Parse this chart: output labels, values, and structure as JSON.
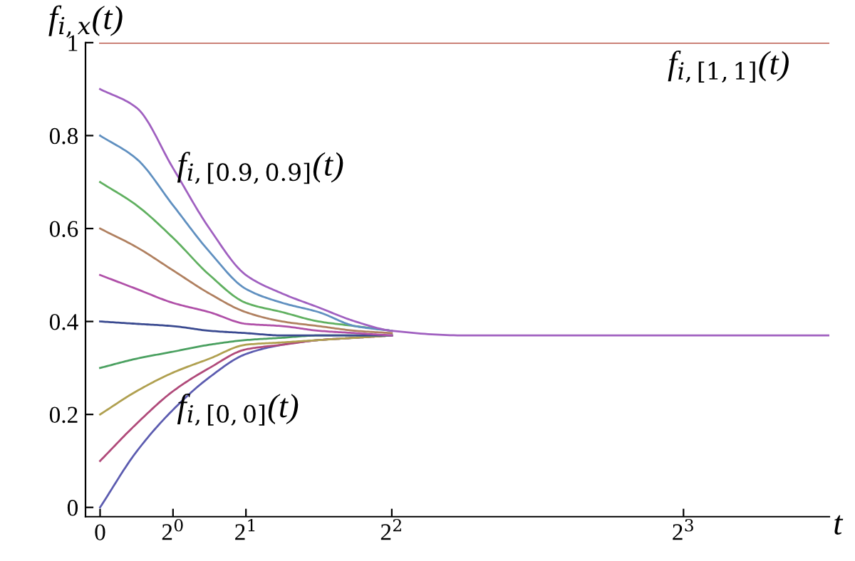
{
  "chart_data": {
    "type": "line",
    "xlabel": "t",
    "ylabel": "f$_{i,x}$(t)",
    "x": [
      0,
      0.5,
      1,
      1.5,
      2,
      2.5,
      3,
      3.5,
      4,
      5,
      6,
      8,
      10
    ],
    "series": [
      {
        "name": "f$_{i,[0,0]}$(t)",
        "color": "#5c5cb0",
        "values": [
          0,
          0.12,
          0.21,
          0.28,
          0.33,
          0.35,
          0.36,
          0.365,
          0.37,
          null,
          null,
          null,
          null
        ]
      },
      {
        "color": "#b04a7a",
        "values": [
          0.1,
          0.18,
          0.25,
          0.3,
          0.34,
          0.35,
          0.36,
          0.365,
          0.37,
          null,
          null,
          null,
          null
        ]
      },
      {
        "color": "#b0a050",
        "values": [
          0.2,
          0.25,
          0.29,
          0.32,
          0.35,
          0.355,
          0.36,
          0.365,
          0.37,
          null,
          null,
          null,
          null
        ]
      },
      {
        "color": "#4aa060",
        "values": [
          0.3,
          0.32,
          0.335,
          0.35,
          0.36,
          0.365,
          0.37,
          0.37,
          0.37,
          null,
          null,
          null,
          null
        ]
      },
      {
        "color": "#3a4a90",
        "values": [
          0.4,
          0.395,
          0.39,
          0.38,
          0.375,
          0.37,
          0.37,
          0.37,
          0.37,
          null,
          null,
          null,
          null
        ]
      },
      {
        "color": "#b050a8",
        "values": [
          0.5,
          0.47,
          0.44,
          0.42,
          0.395,
          0.39,
          0.38,
          0.375,
          0.37,
          null,
          null,
          null,
          null
        ]
      },
      {
        "color": "#b08060",
        "values": [
          0.6,
          0.56,
          0.51,
          0.46,
          0.42,
          0.4,
          0.39,
          0.38,
          0.375,
          null,
          null,
          null,
          null
        ]
      },
      {
        "color": "#60b060",
        "values": [
          0.7,
          0.65,
          0.58,
          0.5,
          0.44,
          0.42,
          0.4,
          0.39,
          0.38,
          null,
          null,
          null,
          null
        ]
      },
      {
        "color": "#6090c0",
        "values": [
          0.8,
          0.75,
          0.65,
          0.55,
          0.47,
          0.44,
          0.42,
          0.39,
          0.38,
          null,
          null,
          null,
          null
        ]
      },
      {
        "name": "f$_{i,[0.9,0.9]}$(t)",
        "color": "#a060c0",
        "values": [
          0.9,
          0.86,
          0.73,
          0.6,
          0.5,
          0.46,
          0.43,
          0.4,
          0.38,
          0.37,
          0.37,
          0.37,
          0.37
        ]
      },
      {
        "name": "f$_{i,[1,1]}$(t)",
        "color": "#b04030",
        "values": [
          1,
          1,
          1,
          1,
          1,
          1,
          1,
          1,
          1,
          1,
          1,
          1,
          1
        ]
      }
    ],
    "xlim": [
      -0.2,
      10
    ],
    "ylim": [
      -0.02,
      1.0
    ],
    "xticks": [
      0,
      {
        "value": 1,
        "label": "2$^{0}$"
      },
      {
        "value": 2,
        "label": "2$^{1}$"
      },
      {
        "value": 4,
        "label": "2$^{2}$"
      },
      {
        "value": 8,
        "label": "2$^{3}$"
      }
    ],
    "yticks": [
      0,
      0.2,
      0.4,
      0.6,
      0.8,
      1
    ],
    "marker": "none",
    "line_style": "solid"
  }
}
